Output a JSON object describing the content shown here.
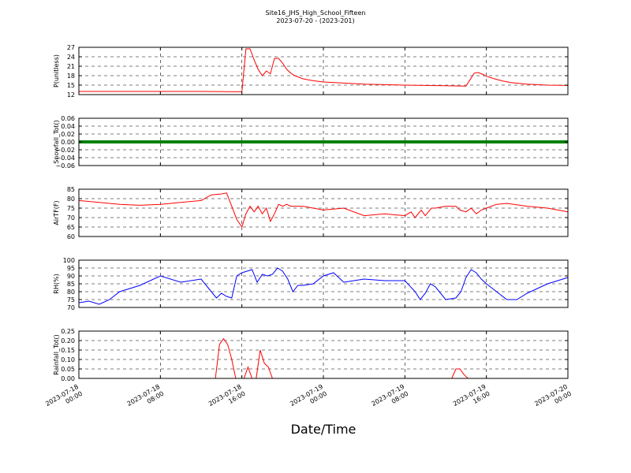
{
  "figure": {
    "title_line1": "Site16_JHS_High_School_Fifteen",
    "title_line2": "2023-07-20 - (2023-201)",
    "xlabel": "Date/Time"
  },
  "chart_data": [
    {
      "type": "line",
      "ylabel": "P(unitless)",
      "ylim": [
        12,
        27
      ],
      "yticks": [
        "12",
        "15",
        "18",
        "21",
        "24",
        "27"
      ],
      "ytick_values": [
        12,
        15,
        18,
        21,
        24,
        27
      ],
      "color": "#ff0000",
      "grid": true,
      "x": [
        0,
        4,
        8,
        12,
        16,
        16.4,
        16.8,
        17.2,
        17.6,
        18,
        18.4,
        18.8,
        19.2,
        19.6,
        20,
        20.4,
        20.8,
        21.2,
        21.6,
        22,
        23,
        24,
        28,
        32,
        36,
        38,
        38.8,
        39.2,
        39.6,
        40,
        40.8,
        41.6,
        42.4,
        44,
        46,
        48
      ],
      "values": [
        13.0,
        13.0,
        13.0,
        13.0,
        12.9,
        26.5,
        26.5,
        23.0,
        20.0,
        18.0,
        19.5,
        18.6,
        23.5,
        23.5,
        22.0,
        20.0,
        18.8,
        18.0,
        17.5,
        17.0,
        16.4,
        16.0,
        15.3,
        15.0,
        14.8,
        14.7,
        18.8,
        19.0,
        18.5,
        17.8,
        17.0,
        16.3,
        15.8,
        15.3,
        15.0,
        14.9
      ]
    },
    {
      "type": "line",
      "ylabel": "Snowfall_Tot()",
      "ylim": [
        -0.06,
        0.06
      ],
      "yticks": [
        "−0.06",
        "−0.04",
        "−0.02",
        "0.00",
        "0.02",
        "0.04",
        "0.06"
      ],
      "ytick_values": [
        -0.06,
        -0.04,
        -0.02,
        0.0,
        0.02,
        0.04,
        0.06
      ],
      "color": "#008000",
      "grid": true,
      "x": [
        0,
        48
      ],
      "values": [
        0.0,
        0.0
      ]
    },
    {
      "type": "line",
      "ylabel": "AirTF(F)",
      "ylim": [
        60,
        85
      ],
      "yticks": [
        "60",
        "65",
        "70",
        "75",
        "80",
        "85"
      ],
      "ytick_values": [
        60,
        65,
        70,
        75,
        80,
        85
      ],
      "color": "#ff0000",
      "grid": true,
      "x": [
        0,
        2,
        4,
        6,
        8,
        10,
        12,
        13,
        14,
        14.5,
        15,
        15.5,
        16,
        16.4,
        16.8,
        17.2,
        17.6,
        18,
        18.4,
        18.8,
        19.2,
        19.6,
        20,
        20.4,
        20.8,
        22,
        24,
        26,
        28,
        30,
        32,
        32.6,
        33,
        33.6,
        34,
        34.6,
        35,
        36,
        37,
        37.4,
        38,
        38.5,
        39,
        39.5,
        40,
        41,
        42,
        44,
        46,
        48
      ],
      "values": [
        79,
        78,
        77,
        76.5,
        77,
        78,
        79,
        82,
        82.5,
        83,
        76,
        69,
        65,
        72,
        76,
        73,
        76,
        72,
        75,
        68,
        72,
        77,
        76,
        77,
        76,
        76,
        74,
        75,
        71,
        72,
        71,
        73,
        70,
        74,
        71,
        75,
        75,
        76,
        76,
        74,
        73,
        75,
        72,
        74,
        75,
        77,
        77.5,
        76,
        75,
        73
      ]
    },
    {
      "type": "line",
      "ylabel": "RH(%)",
      "ylim": [
        70,
        100
      ],
      "yticks": [
        "70",
        "75",
        "80",
        "85",
        "90",
        "95",
        "100"
      ],
      "ytick_values": [
        70,
        75,
        80,
        85,
        90,
        95,
        100
      ],
      "color": "#0000ff",
      "grid": true,
      "x": [
        0,
        1,
        2,
        3,
        4,
        6,
        8,
        10,
        12,
        13,
        13.5,
        14,
        14.5,
        15,
        15.5,
        16,
        16.5,
        17,
        17.5,
        18,
        18.5,
        19,
        19.5,
        20,
        20.5,
        21,
        21.5,
        22,
        23,
        24,
        25,
        26,
        28,
        30,
        32,
        33,
        33.5,
        34,
        34.5,
        35,
        36,
        37,
        37.5,
        38,
        38.5,
        39,
        39.5,
        40,
        41,
        42,
        43,
        44,
        46,
        48
      ],
      "values": [
        73,
        74,
        72,
        75,
        80,
        84,
        90,
        86,
        88,
        80,
        76,
        79,
        77,
        76,
        90,
        92,
        93,
        94,
        86,
        91,
        90,
        91,
        95,
        93,
        88,
        80,
        84,
        84,
        85,
        90,
        92,
        86,
        88,
        87,
        87,
        80,
        75,
        79,
        85,
        83,
        75,
        76,
        80,
        89,
        94,
        92,
        88,
        85,
        80,
        75,
        75,
        79,
        85,
        89
      ]
    },
    {
      "type": "line",
      "ylabel": "Rainfall_Tot()",
      "ylim": [
        0,
        0.25
      ],
      "yticks": [
        "0.00",
        "0.05",
        "0.10",
        "0.15",
        "0.20",
        "0.25"
      ],
      "ytick_values": [
        0,
        0.05,
        0.1,
        0.15,
        0.2,
        0.25
      ],
      "color": "#ff0000",
      "grid": true,
      "x": [
        0,
        13.4,
        13.8,
        14.2,
        14.6,
        15,
        15.4,
        15.8,
        16.2,
        16.6,
        17,
        17.4,
        17.8,
        18.2,
        18.6,
        19,
        19.4,
        20,
        36.6,
        37,
        37.4,
        37.8,
        38.2,
        48
      ],
      "values": [
        0,
        0,
        0.18,
        0.21,
        0.18,
        0.1,
        0.0,
        0.0,
        0.0,
        0.06,
        0.0,
        0.0,
        0.15,
        0.08,
        0.06,
        0.0,
        0.0,
        0.0,
        0.0,
        0.05,
        0.05,
        0.02,
        0.0,
        0.0
      ]
    }
  ],
  "x_axis": {
    "range_hours": [
      0,
      48
    ],
    "tick_hours": [
      0,
      8,
      16,
      24,
      32,
      40,
      48
    ],
    "tick_labels": [
      [
        "2023-07-18",
        "00:00"
      ],
      [
        "2023-07-18",
        "08:00"
      ],
      [
        "2023-07-18",
        "16:00"
      ],
      [
        "2023-07-19",
        "00:00"
      ],
      [
        "2023-07-19",
        "08:00"
      ],
      [
        "2023-07-19",
        "16:00"
      ],
      [
        "2023-07-20",
        "00:00"
      ]
    ]
  }
}
